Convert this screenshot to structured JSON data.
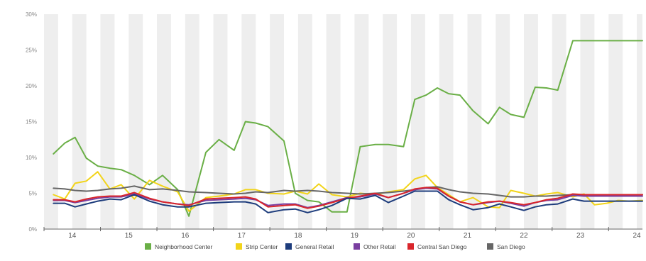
{
  "chart_data": {
    "type": "line",
    "y_ticks": [
      "0%",
      "5%",
      "10%",
      "15%",
      "20%",
      "25%",
      "30%"
    ],
    "ylim": [
      0,
      30
    ],
    "x_ticks": [
      "14",
      "15",
      "16",
      "17",
      "18",
      "19",
      "20",
      "21",
      "22",
      "23",
      "24"
    ],
    "x_tick_values": [
      14,
      15,
      16,
      17,
      18,
      19,
      20,
      21,
      22,
      23,
      24
    ],
    "xlim": [
      13.5,
      24.1
    ],
    "shaded_bands": [
      [
        13.5,
        13.75
      ],
      [
        14.0,
        14.25
      ],
      [
        14.5,
        14.75
      ],
      [
        15.0,
        15.25
      ],
      [
        15.5,
        15.75
      ],
      [
        16.0,
        16.25
      ],
      [
        16.5,
        16.75
      ],
      [
        17.0,
        17.25
      ],
      [
        17.5,
        17.75
      ],
      [
        18.0,
        18.25
      ],
      [
        18.5,
        18.75
      ],
      [
        19.0,
        19.25
      ],
      [
        19.5,
        19.75
      ],
      [
        20.0,
        20.25
      ],
      [
        20.5,
        20.75
      ],
      [
        21.0,
        21.25
      ],
      [
        21.5,
        21.75
      ],
      [
        22.0,
        22.25
      ],
      [
        22.5,
        22.75
      ],
      [
        23.0,
        23.25
      ],
      [
        23.5,
        23.75
      ],
      [
        24.0,
        24.1
      ]
    ],
    "x": [
      13.667,
      13.867,
      14.05,
      14.25,
      14.45,
      14.667,
      14.867,
      15.1,
      15.367,
      15.6,
      15.867,
      16.067,
      16.367,
      16.6,
      16.867,
      17.067,
      17.25,
      17.467,
      17.75,
      17.95,
      18.167,
      18.367,
      18.6,
      18.867,
      19.1,
      19.367,
      19.6,
      19.867,
      20.067,
      20.267,
      20.467,
      20.667,
      20.867,
      21.1,
      21.367,
      21.567,
      21.767,
      22.0,
      22.2,
      22.4,
      22.6,
      22.867,
      23.067,
      23.25,
      23.467,
      23.667,
      23.867,
      24.1
    ],
    "series": [
      {
        "name": "Neighborhood Center",
        "color": "#6aaf46",
        "values": [
          10.5,
          12.0,
          12.8,
          9.9,
          8.8,
          8.5,
          8.3,
          7.5,
          6.2,
          7.5,
          5.5,
          1.8,
          10.7,
          12.5,
          11.0,
          15.0,
          14.8,
          14.3,
          12.3,
          5.0,
          4.0,
          3.8,
          2.4,
          2.4,
          11.5,
          11.8,
          11.8,
          11.5,
          18.1,
          18.7,
          19.7,
          18.9,
          18.7,
          16.5,
          14.7,
          17.0,
          16.0,
          15.6,
          19.8,
          19.7,
          19.4,
          26.3,
          26.3,
          26.3,
          26.3,
          26.3,
          26.3,
          26.3
        ]
      },
      {
        "name": "Strip Center",
        "color": "#f2d41a",
        "values": [
          4.8,
          4.2,
          6.4,
          6.7,
          8.0,
          5.6,
          6.2,
          4.2,
          6.8,
          6.0,
          5.2,
          2.5,
          4.4,
          4.6,
          4.9,
          5.5,
          5.5,
          5.0,
          4.9,
          5.3,
          4.9,
          6.3,
          4.8,
          4.5,
          5.0,
          4.8,
          5.2,
          5.5,
          7.0,
          7.5,
          5.8,
          4.8,
          3.8,
          4.4,
          3.1,
          3.0,
          5.4,
          5.0,
          4.6,
          4.9,
          5.1,
          4.5,
          4.9,
          3.4,
          3.6,
          4.0,
          3.9,
          4.0
        ]
      },
      {
        "name": "General Retail",
        "color": "#1d3c7c",
        "values": [
          3.6,
          3.6,
          3.1,
          3.5,
          3.9,
          4.2,
          4.1,
          4.8,
          3.9,
          3.4,
          3.1,
          3.1,
          3.6,
          3.7,
          3.8,
          3.8,
          3.5,
          2.3,
          2.7,
          2.8,
          2.3,
          2.7,
          3.3,
          4.3,
          4.2,
          4.7,
          3.7,
          4.6,
          5.3,
          5.3,
          5.3,
          4.1,
          3.4,
          2.7,
          3.0,
          3.5,
          3.1,
          2.6,
          3.1,
          3.4,
          3.5,
          4.2,
          3.9,
          3.9,
          3.9,
          3.9,
          3.9,
          3.9
        ]
      },
      {
        "name": "Other Retail",
        "color": "#7a3fa0",
        "values": [
          4.0,
          4.0,
          3.7,
          4.0,
          4.3,
          4.5,
          4.5,
          4.9,
          4.2,
          3.8,
          3.5,
          3.4,
          4.0,
          4.1,
          4.2,
          4.3,
          4.1,
          3.3,
          3.5,
          3.5,
          3.0,
          3.3,
          3.8,
          4.4,
          4.5,
          4.9,
          4.4,
          5.0,
          5.5,
          5.7,
          5.6,
          4.6,
          3.8,
          3.4,
          3.7,
          3.9,
          3.6,
          3.2,
          3.7,
          4.0,
          4.1,
          4.7,
          4.6,
          4.6,
          4.6,
          4.6,
          4.6,
          4.6
        ]
      },
      {
        "name": "Central San Diego",
        "color": "#d9262c",
        "values": [
          4.1,
          4.1,
          3.8,
          4.2,
          4.5,
          4.6,
          4.6,
          5.1,
          4.3,
          3.8,
          3.5,
          3.3,
          4.2,
          4.3,
          4.4,
          4.5,
          4.2,
          3.1,
          3.3,
          3.4,
          2.9,
          3.2,
          3.7,
          4.3,
          4.6,
          5.0,
          4.4,
          5.0,
          5.6,
          5.8,
          5.7,
          4.6,
          3.8,
          3.4,
          3.8,
          3.9,
          3.7,
          3.4,
          3.7,
          4.1,
          4.3,
          4.9,
          4.8,
          4.8,
          4.8,
          4.8,
          4.8,
          4.8
        ]
      },
      {
        "name": "San Diego",
        "color": "#666666",
        "values": [
          5.7,
          5.6,
          5.4,
          5.3,
          5.4,
          5.6,
          5.7,
          6.0,
          5.5,
          5.6,
          5.4,
          5.2,
          5.1,
          5.0,
          4.9,
          5.0,
          5.2,
          5.1,
          5.4,
          5.3,
          5.4,
          5.3,
          5.1,
          5.0,
          4.9,
          5.0,
          5.1,
          5.3,
          5.5,
          5.8,
          5.9,
          5.5,
          5.2,
          5.0,
          4.9,
          4.7,
          4.5,
          4.5,
          4.6,
          4.6,
          4.7,
          4.8,
          4.8,
          4.8,
          4.8,
          4.8,
          4.8,
          4.8
        ]
      }
    ],
    "grid": false,
    "legend_position": "bottom"
  }
}
